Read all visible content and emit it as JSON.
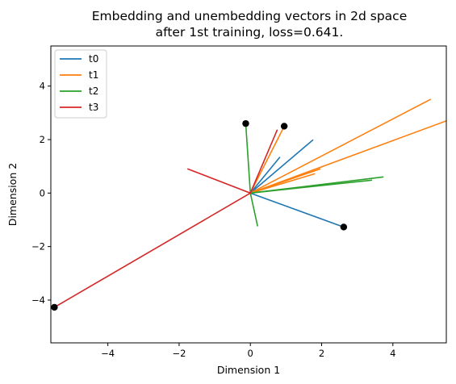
{
  "chart_data": {
    "type": "line",
    "title": "Embedding and unembedding vectors in 2d space\nafter 1st training, loss=0.641.",
    "title_lines": [
      "Embedding and unembedding vectors in 2d space",
      "after 1st training, loss=0.641."
    ],
    "xlabel": "Dimension 1",
    "ylabel": "Dimension 2",
    "xlim": [
      -5.6,
      5.5
    ],
    "ylim": [
      -5.6,
      5.5
    ],
    "xticks": [
      -4,
      -2,
      0,
      2,
      4
    ],
    "yticks": [
      -4,
      -2,
      0,
      2,
      4
    ],
    "grid": false,
    "legend_position": "top-left",
    "series": [
      {
        "name": "t0",
        "color": "#1f77b4",
        "vectors": [
          [
            0,
            0,
            2.62,
            -1.27
          ],
          [
            0,
            0,
            1.75,
            1.98
          ],
          [
            0,
            0,
            0.82,
            1.33
          ]
        ]
      },
      {
        "name": "t1",
        "color": "#ff7f0e",
        "vectors": [
          [
            0,
            0,
            0.95,
            2.5
          ],
          [
            0,
            0,
            5.05,
            3.5
          ],
          [
            0,
            0,
            5.5,
            2.7
          ],
          [
            0,
            0,
            1.95,
            0.9
          ],
          [
            0,
            0,
            1.8,
            0.72
          ]
        ]
      },
      {
        "name": "t2",
        "color": "#2ca02c",
        "vectors": [
          [
            0,
            0,
            -0.13,
            2.6
          ],
          [
            0,
            0,
            0.2,
            -1.22
          ],
          [
            0,
            0,
            3.72,
            0.6
          ],
          [
            0,
            0,
            3.4,
            0.48
          ]
        ]
      },
      {
        "name": "t3",
        "color": "#d62728",
        "vectors": [
          [
            0,
            0,
            -5.5,
            -4.27
          ],
          [
            0,
            0,
            -1.75,
            0.9
          ],
          [
            0,
            0,
            0.75,
            2.35
          ]
        ]
      }
    ],
    "points": [
      {
        "x": -0.13,
        "y": 2.6
      },
      {
        "x": 0.95,
        "y": 2.5
      },
      {
        "x": 2.62,
        "y": -1.27
      },
      {
        "x": -5.5,
        "y": -4.27
      }
    ]
  }
}
